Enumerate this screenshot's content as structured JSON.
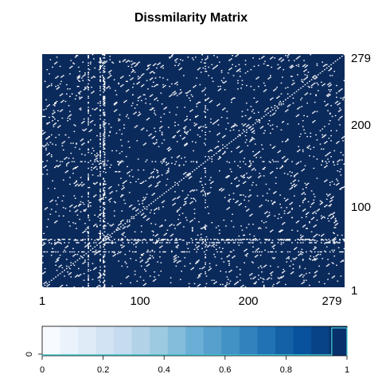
{
  "chart_data": [
    {
      "type": "heatmap",
      "title": "Dissmilarity Matrix",
      "n": 279,
      "x_tick_labels": [
        "1",
        "100",
        "200",
        "279"
      ],
      "y_tick_labels": [
        "1",
        "100",
        "200",
        "279"
      ],
      "value_range": [
        0,
        1
      ],
      "background_color": "#0b2a5c",
      "low_value_color": "#ffffff",
      "note_values": "matrix is almost entirely near-maximum dissimilarity (dark navy) with scattered low-dissimilarity (white) cells; diagonal of zeros"
    },
    {
      "type": "bar",
      "role": "colorbar-histogram",
      "y_tick_labels": [
        "0"
      ],
      "x_tick_labels": [
        "0",
        "0.2",
        "0.4",
        "0.6",
        "0.8",
        "1"
      ],
      "xlim": [
        0,
        1
      ],
      "colors": [
        "#f7fbff",
        "#eaf3fb",
        "#dfecf7",
        "#d2e3f3",
        "#c6dbef",
        "#b2d2e8",
        "#9ecae1",
        "#84bcdb",
        "#6baed6",
        "#57a0ce",
        "#4292c6",
        "#3282be",
        "#2171b5",
        "#1461a8",
        "#08519c",
        "#084387",
        "#08306b"
      ],
      "histogram_outline_color": "#3ec7cf",
      "bins": [
        {
          "from": 0.0,
          "to": 0.95,
          "value": 0.03
        },
        {
          "from": 0.95,
          "to": 1.0,
          "value": 1.0
        }
      ]
    }
  ]
}
